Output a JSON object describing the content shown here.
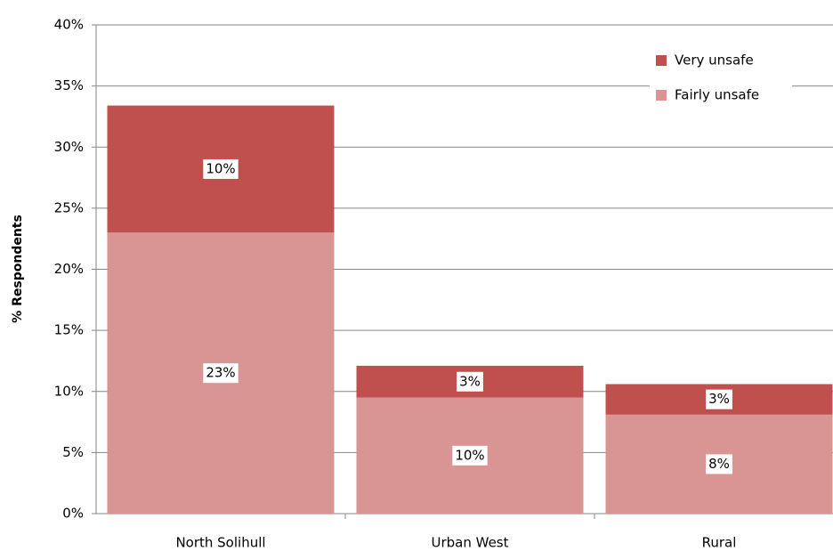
{
  "chart_data": {
    "type": "stacked_bar",
    "categories": [
      "North Solihull",
      "Urban West",
      "Rural"
    ],
    "series": [
      {
        "name": "Fairly unsafe",
        "color": "#d99594",
        "values": [
          23.0,
          9.5,
          8.1
        ],
        "value_labels": [
          "23%",
          "10%",
          "8%"
        ]
      },
      {
        "name": "Very unsafe",
        "color": "#c0504d",
        "values": [
          10.4,
          2.6,
          2.5
        ],
        "value_labels": [
          "10%",
          "3%",
          "3%"
        ]
      }
    ],
    "y_label": "% Respondents",
    "ylim": [
      0,
      40
    ],
    "yticks": [
      {
        "value": 0,
        "label": "0%"
      },
      {
        "value": 5,
        "label": "5%"
      },
      {
        "value": 10,
        "label": "10%"
      },
      {
        "value": 15,
        "label": "15%"
      },
      {
        "value": 20,
        "label": "20%"
      },
      {
        "value": 25,
        "label": "25%"
      },
      {
        "value": 30,
        "label": "30%"
      },
      {
        "value": 35,
        "label": "35%"
      },
      {
        "value": 40,
        "label": "40%"
      }
    ],
    "grid": true,
    "legend": "top-right"
  }
}
